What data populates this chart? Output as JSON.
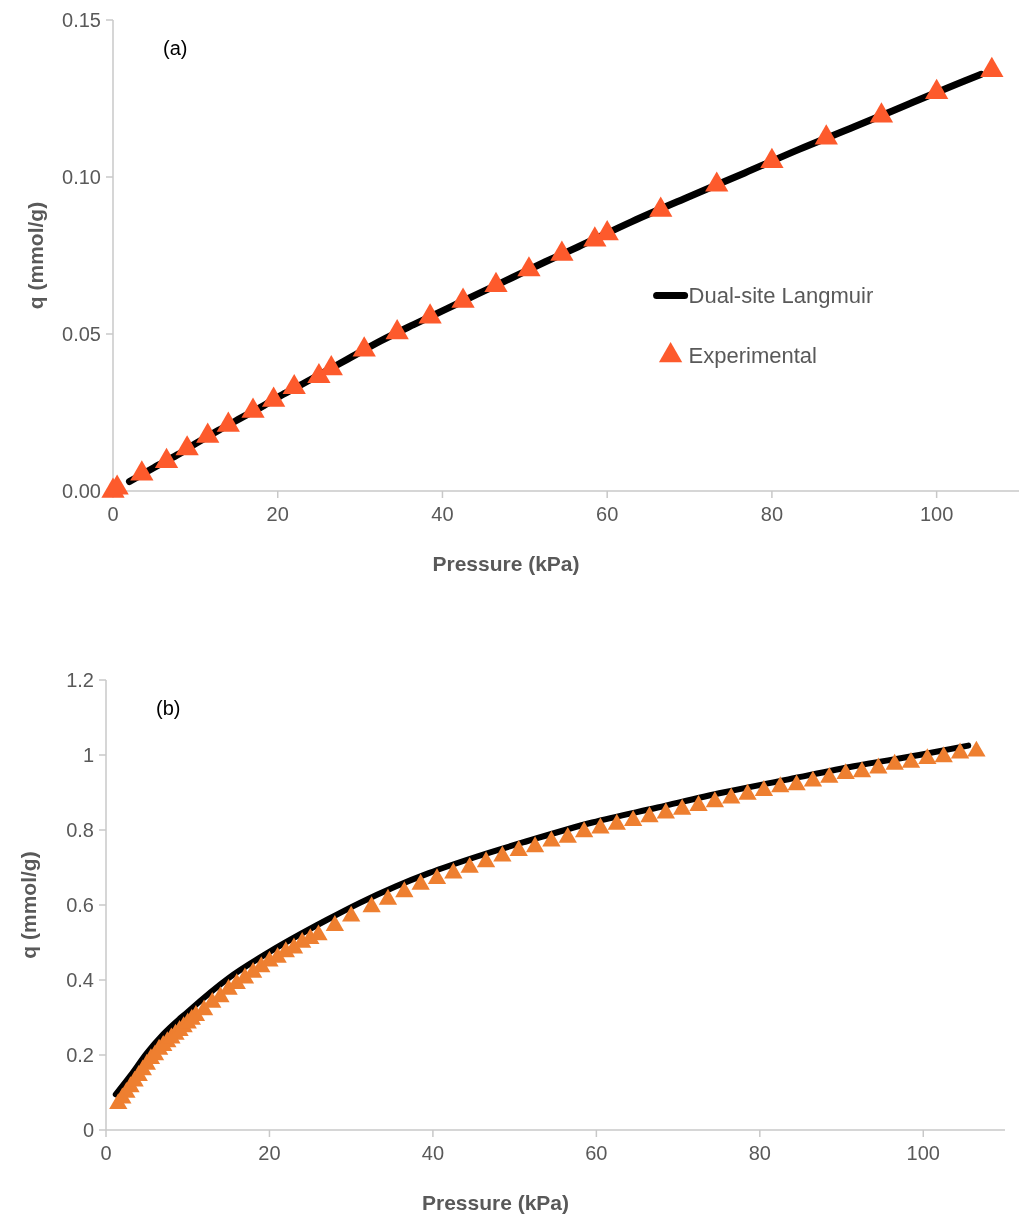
{
  "chart_data": [
    {
      "type": "line",
      "xlabel": "Pressure (kPa)",
      "ylabel": "q (mmol/g)",
      "annotations": [
        "(a)"
      ],
      "xlim": [
        0,
        110
      ],
      "xticks": [
        0,
        20,
        40,
        60,
        80,
        100
      ],
      "ylim": [
        0,
        0.15
      ],
      "yticks": [
        {
          "value": 0,
          "label": "0.00"
        },
        {
          "value": 0.05,
          "label": "0.05"
        },
        {
          "value": 0.1,
          "label": "0.10"
        },
        {
          "value": 0.15,
          "label": "0.15"
        }
      ],
      "grid": false,
      "legend": "right",
      "series": [
        {
          "name": "Dual-site Langmuir",
          "color": "#000000",
          "marker": "none",
          "line_style": "solid",
          "x": [
            2,
            5,
            7.8,
            10.3,
            12.8,
            15.5,
            18.3,
            20.8,
            23.5,
            28.5,
            32.5,
            36.5,
            40.5,
            44.5,
            48.5,
            52.5,
            56.5,
            63,
            70,
            76.7,
            83.3,
            90,
            96.7,
            103.3,
            105.4
          ],
          "values": [
            0.003,
            0.0075,
            0.0115,
            0.0155,
            0.0193,
            0.0232,
            0.0272,
            0.031,
            0.0348,
            0.042,
            0.0478,
            0.053,
            0.058,
            0.063,
            0.068,
            0.073,
            0.0778,
            0.0858,
            0.0938,
            0.1013,
            0.1088,
            0.116,
            0.1233,
            0.1305,
            0.1327
          ]
        },
        {
          "name": "Experimental",
          "type": "scatter",
          "color": "#fd5a2c",
          "marker": "triangle",
          "x": [
            0,
            0.5,
            3.5,
            6.5,
            9,
            11.5,
            14,
            17,
            19.5,
            22,
            25,
            26.5,
            30.5,
            34.5,
            38.5,
            42.5,
            46.5,
            50.5,
            54.5,
            58.5,
            60,
            66.5,
            73.3,
            80,
            86.6,
            93.3,
            100,
            106.7
          ],
          "values": [
            0,
            0.001,
            0.0055,
            0.0095,
            0.0135,
            0.0175,
            0.021,
            0.0255,
            0.029,
            0.033,
            0.0365,
            0.039,
            0.045,
            0.0505,
            0.0555,
            0.0605,
            0.0655,
            0.0705,
            0.0755,
            0.08,
            0.082,
            0.0895,
            0.0975,
            0.105,
            0.1125,
            0.1195,
            0.127,
            0.134
          ]
        }
      ]
    },
    {
      "type": "line",
      "xlabel": "Pressure (kPa)",
      "ylabel": "q (mmol/g)",
      "annotations": [
        "(b)"
      ],
      "xlim": [
        0,
        110
      ],
      "xticks": [
        0,
        20,
        40,
        60,
        80,
        100
      ],
      "ylim": [
        0,
        1.2
      ],
      "yticks": [
        0,
        0.2,
        0.4,
        0.6,
        0.8,
        1,
        1.2
      ],
      "grid": false,
      "legend": false,
      "series": [
        {
          "color": "#000000",
          "marker": "none",
          "line_style": "solid",
          "x": [
            1.2,
            3,
            5,
            7,
            10,
            15,
            20,
            27,
            31,
            35.5,
            39.5,
            45.5,
            51.5,
            59.5,
            67.5,
            75.5,
            83.5,
            91.5,
            99.5,
            105.5
          ],
          "values": [
            0.095,
            0.145,
            0.205,
            0.255,
            0.315,
            0.405,
            0.475,
            0.56,
            0.605,
            0.65,
            0.685,
            0.73,
            0.77,
            0.82,
            0.86,
            0.9,
            0.935,
            0.97,
            1,
            1.025
          ]
        },
        {
          "type": "scatter",
          "color": "#ee7f30",
          "marker": "triangle",
          "x": [
            1.5,
            2,
            2.5,
            3,
            3.5,
            4,
            4.5,
            5,
            5.5,
            6,
            6.5,
            7,
            7.5,
            8,
            8.5,
            9,
            9.5,
            10,
            10.5,
            11,
            12,
            13,
            14,
            15,
            16,
            17,
            18,
            19,
            20,
            21,
            22,
            23,
            24,
            25,
            26,
            28,
            30,
            32.5,
            34.5,
            36.5,
            38.5,
            40.5,
            42.5,
            44.5,
            46.5,
            48.5,
            50.5,
            52.5,
            54.5,
            56.5,
            58.5,
            60.5,
            62.5,
            64.5,
            66.5,
            68.5,
            70.5,
            72.5,
            74.5,
            76.5,
            78.5,
            80.5,
            82.5,
            84.5,
            86.5,
            88.5,
            90.5,
            92.5,
            94.5,
            96.5,
            98.5,
            100.5,
            102.5,
            104.5,
            106.5
          ],
          "values": [
            0.07,
            0.085,
            0.1,
            0.115,
            0.13,
            0.145,
            0.16,
            0.175,
            0.19,
            0.2,
            0.215,
            0.225,
            0.235,
            0.245,
            0.255,
            0.265,
            0.275,
            0.285,
            0.295,
            0.305,
            0.32,
            0.34,
            0.355,
            0.375,
            0.39,
            0.405,
            0.42,
            0.435,
            0.45,
            0.46,
            0.475,
            0.485,
            0.5,
            0.51,
            0.52,
            0.545,
            0.57,
            0.595,
            0.615,
            0.635,
            0.655,
            0.67,
            0.685,
            0.7,
            0.715,
            0.73,
            0.745,
            0.755,
            0.77,
            0.78,
            0.795,
            0.805,
            0.815,
            0.825,
            0.835,
            0.845,
            0.855,
            0.865,
            0.875,
            0.885,
            0.895,
            0.905,
            0.915,
            0.92,
            0.93,
            0.94,
            0.95,
            0.955,
            0.965,
            0.975,
            0.98,
            0.99,
            0.995,
            1.005,
            1.01
          ]
        }
      ]
    }
  ]
}
